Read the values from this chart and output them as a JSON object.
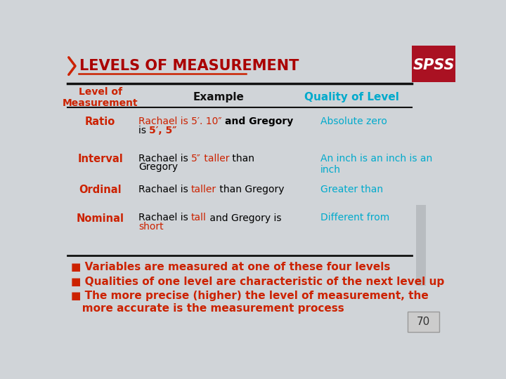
{
  "title": "LEVELS OF MEASUREMENT",
  "title_color": "#aa0000",
  "title_fontsize": 15,
  "bg_color": "#d0d4d8",
  "header_bg": "#aa1122",
  "spss_text": "SPSS",
  "col_header_level": "Level of\nMeasurement",
  "col_header_example": "Example",
  "col_header_quality": "Quality of Level",
  "col_header_level_color": "#cc2200",
  "col_header_example_color": "#111111",
  "col_header_quality_color": "#00aacc",
  "bullets": [
    "■ Variables are measured at one of these four levels",
    "■ Qualities of one level are characteristic of the next level up",
    "■ The more precise (higher) the level of measurement, the\n   more accurate is the measurement process"
  ],
  "bullet_color": "#cc2200",
  "page_num": "70",
  "line_color": "#111111",
  "red_accent": "#cc2200",
  "cyan_color": "#00aacc",
  "gray_sidebar": "#b8bcc0"
}
